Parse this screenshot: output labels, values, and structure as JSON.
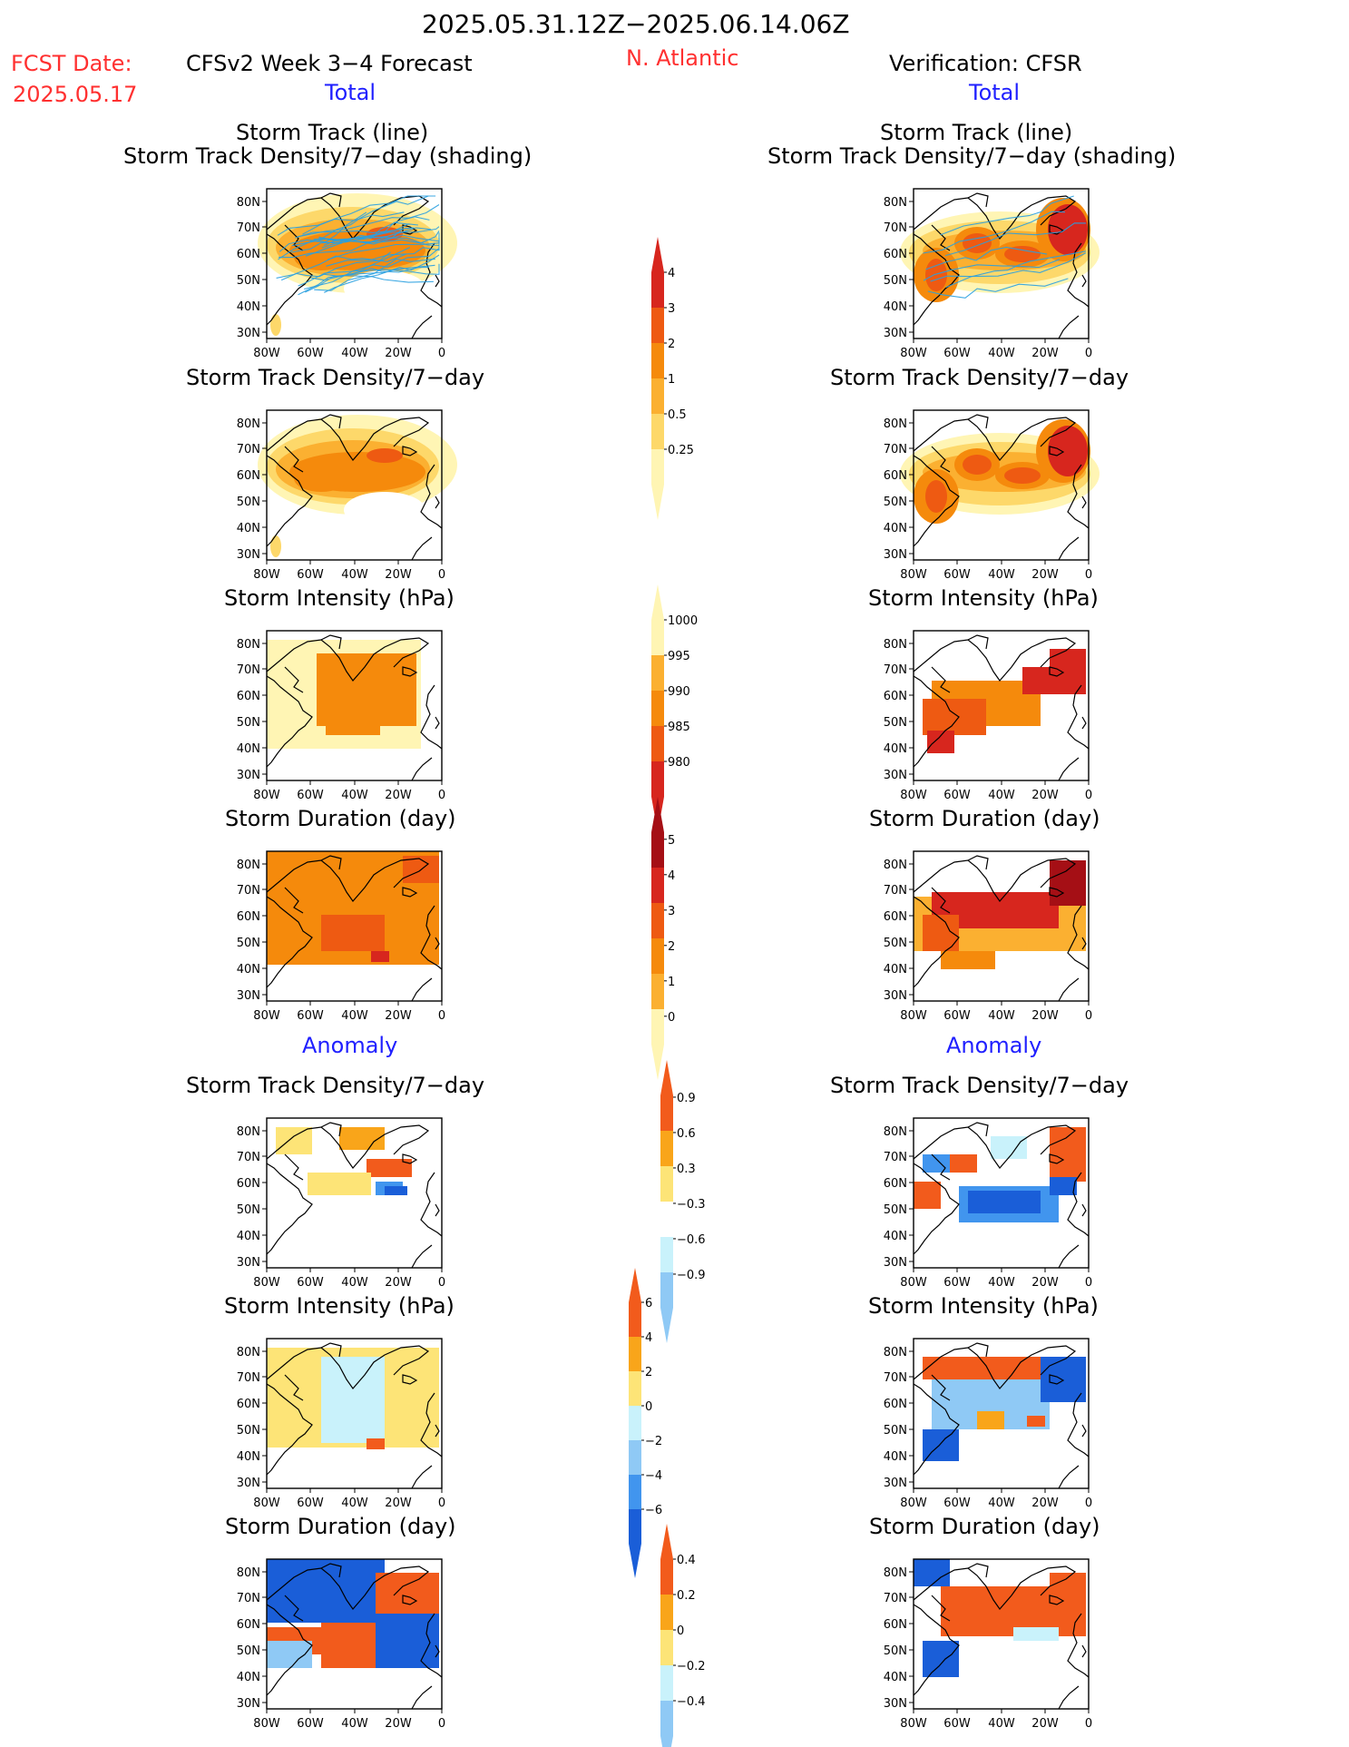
{
  "header": {
    "period": "2025.05.31.12Z−2025.06.14.06Z",
    "fcst_label": "FCST Date:",
    "fcst_date": "2025.05.17",
    "left_title": "CFSv2 Week 3−4 Forecast",
    "region": "N. Atlantic",
    "right_title": "Verification: CFSR",
    "total_label": "Total",
    "anomaly_label": "Anomaly"
  },
  "panel_titles": {
    "track_line": "Storm Track (line)",
    "track_shading": "Storm Track Density/7−day (shading)",
    "density": "Storm Track Density/7−day",
    "intensity": "Storm Intensity (hPa)",
    "duration": "Storm Duration (day)"
  },
  "axes": {
    "lat_ticks": [
      "80N",
      "70N",
      "60N",
      "50N",
      "40N",
      "30N"
    ],
    "lon_ticks": [
      "80W",
      "60W",
      "40W",
      "20W",
      "0"
    ]
  },
  "colors": {
    "density_scale": [
      "#fff5b4",
      "#fdd86a",
      "#fbb031",
      "#f58a0c",
      "#ee5a12",
      "#d7261e",
      "#a50f15"
    ],
    "intensity_scale": [
      "#a50f15",
      "#d7261e",
      "#ee5a12",
      "#f58a0c",
      "#fdd86a",
      "#fff5b4"
    ],
    "anomaly_pos": [
      "#fde477",
      "#f9a51a",
      "#f25b1c",
      "#a50f15"
    ],
    "anomaly_neg": [
      "#c9f2fb",
      "#8fc9f5",
      "#4195ee",
      "#1a5ed8"
    ],
    "track_line": "#29a0e0"
  },
  "chart_data": [
    {
      "id": "density-colorbar",
      "type": "heatmap",
      "title": "",
      "levels": [
        "0.25",
        "0.5",
        "1",
        "2",
        "3",
        "4"
      ]
    },
    {
      "id": "intensity-colorbar",
      "type": "heatmap",
      "title": "",
      "levels": [
        "1000",
        "995",
        "990",
        "985",
        "980"
      ]
    },
    {
      "id": "duration-colorbar",
      "type": "heatmap",
      "title": "",
      "levels": [
        "0",
        "1",
        "2",
        "3",
        "4",
        "5"
      ]
    },
    {
      "id": "density-anomaly-colorbar",
      "type": "heatmap",
      "title": "",
      "levels": [
        "0.9",
        "0.6",
        "0.3",
        "−0.3",
        "−0.6",
        "−0.9"
      ]
    },
    {
      "id": "intensity-anomaly-colorbar",
      "type": "heatmap",
      "title": "",
      "levels": [
        "6",
        "4",
        "2",
        "0",
        "−2",
        "−4",
        "−6"
      ]
    },
    {
      "id": "duration-anomaly-colorbar",
      "type": "heatmap",
      "title": "",
      "levels": [
        "0.4",
        "0.2",
        "0",
        "−0.2",
        "−0.4"
      ]
    }
  ]
}
